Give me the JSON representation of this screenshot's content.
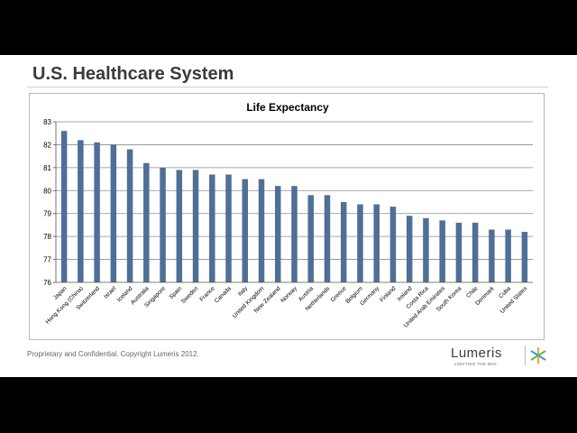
{
  "slide": {
    "title": "U.S. Healthcare System",
    "footer": "Proprietary and Confidential. Copyright Lumeris 2012.",
    "logo": {
      "name": "Lumeris",
      "tagline": "LIGHTING THE WAY."
    }
  },
  "colors": {
    "bar": "#4f6f96",
    "grid": "#8c8c8c",
    "axis": "#555555"
  },
  "chart_data": {
    "type": "bar",
    "title": "Life Expectancy",
    "xlabel": "",
    "ylabel": "",
    "ylim": [
      76,
      83
    ],
    "yticks": [
      76,
      77,
      78,
      79,
      80,
      81,
      82,
      83
    ],
    "grid": true,
    "legend": "none",
    "categories": [
      "Japan",
      "Hong Kong (China)",
      "Switzerland",
      "Israel",
      "Iceland",
      "Australia",
      "Singapore",
      "Spain",
      "Sweden",
      "France",
      "Canada",
      "Italy",
      "United Kingdom",
      "New Zealand",
      "Norway",
      "Austria",
      "Netherlands",
      "Greece",
      "Belgium",
      "Germany",
      "Finland",
      "Ireland",
      "Costa Rica",
      "United Arab Emirates",
      "South Korea",
      "Chile",
      "Denmark",
      "Cuba",
      "United States"
    ],
    "values": [
      82.6,
      82.2,
      82.1,
      82.0,
      81.8,
      81.2,
      81.0,
      80.9,
      80.9,
      80.7,
      80.7,
      80.5,
      80.5,
      80.2,
      80.2,
      79.8,
      79.8,
      79.5,
      79.4,
      79.4,
      79.3,
      78.9,
      78.8,
      78.7,
      78.6,
      78.6,
      78.3,
      78.3,
      78.2
    ]
  }
}
